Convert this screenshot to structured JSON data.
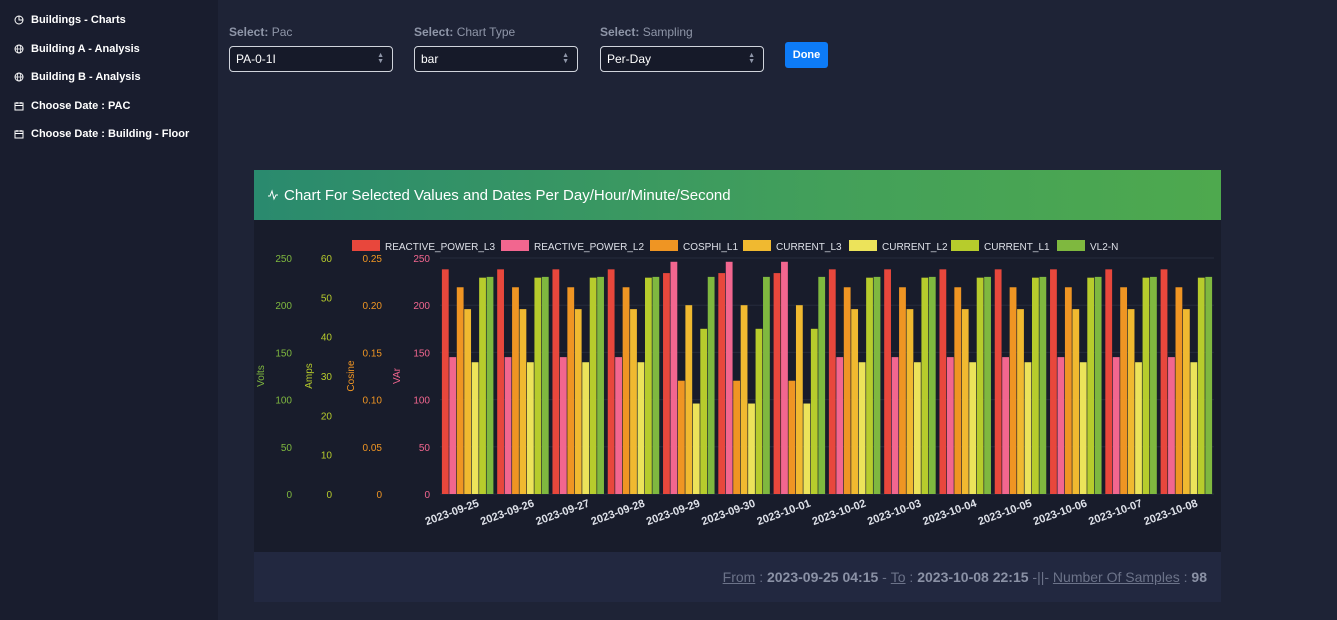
{
  "sidebar": {
    "items": [
      {
        "label": "Buildings - Charts",
        "icon": "pie-chart-icon"
      },
      {
        "label": "Building A - Analysis",
        "icon": "globe-icon"
      },
      {
        "label": "Building B - Analysis",
        "icon": "globe-icon"
      },
      {
        "label": "Choose Date : PAC",
        "icon": "calendar-icon"
      },
      {
        "label": "Choose Date : Building - Floor",
        "icon": "calendar-icon"
      }
    ]
  },
  "controls": {
    "pac": {
      "prefix": "Select:",
      "label": "Pac",
      "value": "PA-0-1I"
    },
    "chart_type": {
      "prefix": "Select:",
      "label": "Chart Type",
      "value": "bar"
    },
    "sampling": {
      "prefix": "Select:",
      "label": "Sampling",
      "value": "Per-Day"
    },
    "done_label": "Done"
  },
  "card": {
    "title": "Chart For Selected Values and Dates Per Day/Hour/Minute/Second"
  },
  "footer": {
    "from_label": "From",
    "from_value": "2023-09-25 04:15",
    "to_label": "To",
    "to_value": "2023-10-08 22:15",
    "separator": "-||-",
    "samples_label": "Number Of Samples",
    "samples_value": "98"
  },
  "chart_data": {
    "type": "bar",
    "categories": [
      "2023-09-25",
      "2023-09-26",
      "2023-09-27",
      "2023-09-28",
      "2023-09-29",
      "2023-09-30",
      "2023-10-01",
      "2023-10-02",
      "2023-10-03",
      "2023-10-04",
      "2023-10-05",
      "2023-10-06",
      "2023-10-07",
      "2023-10-08"
    ],
    "series": [
      {
        "name": "REACTIVE_POWER_L3",
        "color": "#e8473c",
        "axis": "var",
        "values": [
          238,
          238,
          238,
          238,
          234,
          234,
          234,
          238,
          238,
          238,
          238,
          238,
          238,
          238
        ]
      },
      {
        "name": "REACTIVE_POWER_L2",
        "color": "#f2668f",
        "axis": "var",
        "values": [
          145,
          145,
          145,
          145,
          246,
          246,
          246,
          145,
          145,
          145,
          145,
          145,
          145,
          145
        ]
      },
      {
        "name": "COSPHI_L1",
        "color": "#ef9523",
        "axis": "cosine",
        "values": [
          0.219,
          0.219,
          0.219,
          0.219,
          0.12,
          0.12,
          0.12,
          0.219,
          0.219,
          0.219,
          0.219,
          0.219,
          0.219,
          0.219
        ]
      },
      {
        "name": "CURRENT_L3",
        "color": "#f0b930",
        "axis": "amps",
        "values": [
          47,
          47,
          47,
          47,
          48,
          48,
          48,
          47,
          47,
          47,
          47,
          47,
          47,
          47
        ]
      },
      {
        "name": "CURRENT_L2",
        "color": "#ece35a",
        "axis": "amps",
        "values": [
          33.5,
          33.5,
          33.5,
          33.5,
          23,
          23,
          23,
          33.5,
          33.5,
          33.5,
          33.5,
          33.5,
          33.5,
          33.5
        ]
      },
      {
        "name": "CURRENT_L1",
        "color": "#b7cc2c",
        "axis": "amps",
        "values": [
          55,
          55,
          55,
          55,
          42,
          42,
          42,
          55,
          55,
          55,
          55,
          55,
          55,
          55
        ]
      },
      {
        "name": "VL2-N",
        "color": "#7fb83f",
        "axis": "volts",
        "values": [
          230,
          230,
          230,
          230,
          230,
          230,
          230,
          230,
          230,
          230,
          230,
          230,
          230,
          230
        ]
      }
    ],
    "axes": [
      {
        "id": "volts",
        "label": "Volts",
        "color": "#7fb83f",
        "ticks": [
          "0",
          "50",
          "100",
          "150",
          "200",
          "250"
        ],
        "range": [
          0,
          250
        ]
      },
      {
        "id": "amps",
        "label": "Amps",
        "color": "#b7cc2c",
        "ticks": [
          "0",
          "10",
          "20",
          "30",
          "40",
          "50",
          "60"
        ],
        "range": [
          0,
          60
        ]
      },
      {
        "id": "cosine",
        "label": "Cosine",
        "color": "#ef9523",
        "ticks": [
          "0",
          "0.05",
          "0.10",
          "0.15",
          "0.20",
          "0.25"
        ],
        "range": [
          0,
          0.25
        ]
      },
      {
        "id": "var",
        "label": "VAr",
        "color": "#f2668f",
        "ticks": [
          "0",
          "50",
          "100",
          "150",
          "200",
          "250"
        ],
        "range": [
          0,
          250
        ]
      }
    ],
    "legend_position": "top",
    "grid": true
  }
}
